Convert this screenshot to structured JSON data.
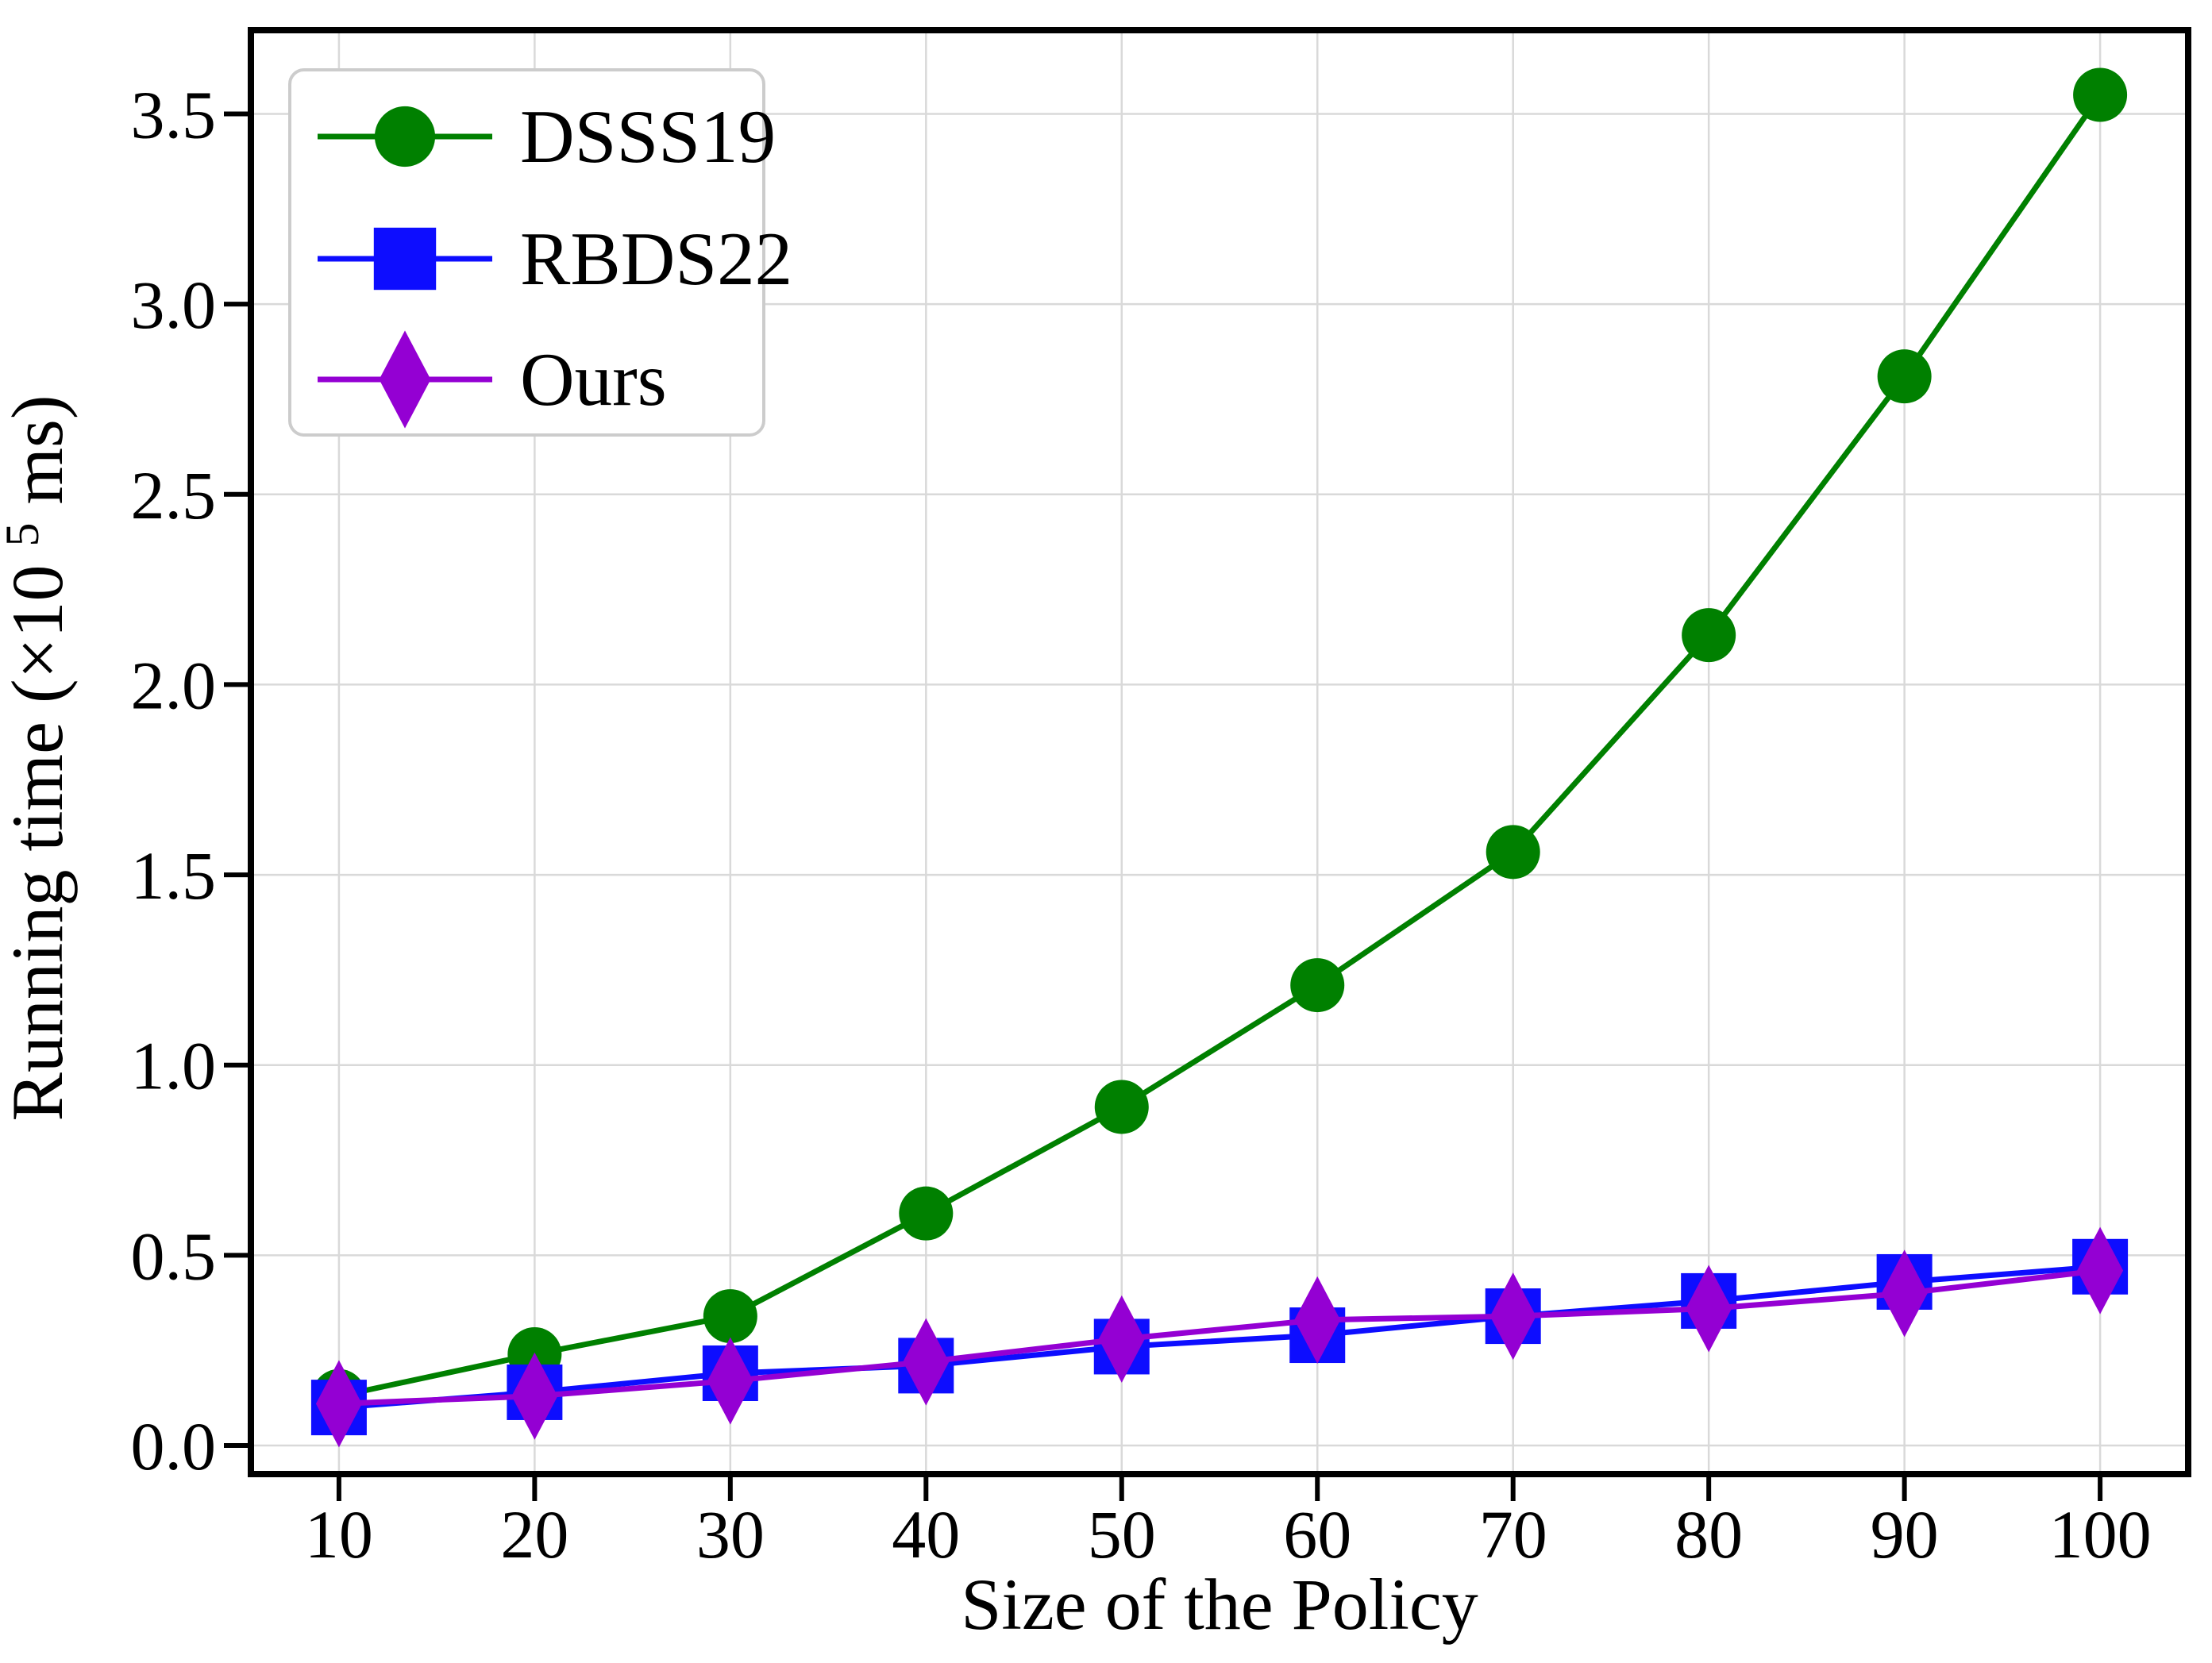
{
  "figure": {
    "background": "#ffffff",
    "grid_color": "#d9d9d9",
    "spine_color": "#000000",
    "tick_color": "#000000",
    "legend_border_color": "#cccccc",
    "legend_background": "#ffffff",
    "ylabel_parts": [
      "Running time (×10",
      "5",
      " ms)"
    ]
  },
  "chart_data": {
    "type": "line",
    "title": "",
    "xlabel": "Size of the Policy",
    "ylabel": "Running time (×10^5 ms)",
    "x": [
      10,
      20,
      30,
      40,
      50,
      60,
      70,
      80,
      90,
      100
    ],
    "xlim": [
      5.5,
      104.5
    ],
    "ylim": [
      -0.075,
      3.72
    ],
    "xticks": [
      10,
      20,
      30,
      40,
      50,
      60,
      70,
      80,
      90,
      100
    ],
    "xtick_labels": [
      "10",
      "20",
      "30",
      "40",
      "50",
      "60",
      "70",
      "80",
      "90",
      "100"
    ],
    "yticks": [
      0.0,
      0.5,
      1.0,
      1.5,
      2.0,
      2.5,
      3.0,
      3.5
    ],
    "ytick_labels": [
      "0.0",
      "0.5",
      "1.0",
      "1.5",
      "2.0",
      "2.5",
      "3.0",
      "3.5"
    ],
    "grid": true,
    "legend_position": "upper left",
    "series": [
      {
        "name": "DSSS19",
        "color": "#008000",
        "marker": "circle",
        "values": [
          0.13,
          0.24,
          0.34,
          0.61,
          0.89,
          1.21,
          1.56,
          2.13,
          2.81,
          3.55
        ]
      },
      {
        "name": "RBDS22",
        "color": "#0d0dff",
        "marker": "square",
        "values": [
          0.1,
          0.14,
          0.19,
          0.21,
          0.26,
          0.29,
          0.34,
          0.38,
          0.43,
          0.47
        ]
      },
      {
        "name": "Ours",
        "color": "#9400d3",
        "marker": "thin-diamond",
        "values": [
          0.11,
          0.13,
          0.17,
          0.22,
          0.28,
          0.33,
          0.34,
          0.36,
          0.4,
          0.46
        ]
      }
    ]
  }
}
